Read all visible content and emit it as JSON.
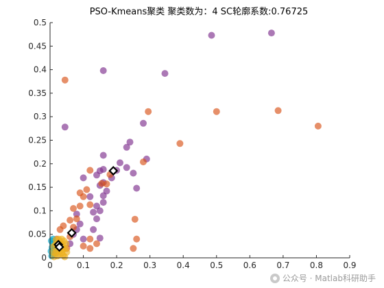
{
  "chart_data": {
    "type": "scatter",
    "title": "PSO-Kmeans聚类  聚类数为：4  SC轮廓系数:0.76725",
    "xlim": [
      0,
      0.9
    ],
    "ylim": [
      0,
      0.5
    ],
    "xticks": [
      "0",
      "0.1",
      "0.2",
      "0.3",
      "0.4",
      "0.5",
      "0.6",
      "0.7",
      "0.8",
      "0.9"
    ],
    "yticks": [
      "0",
      "0.05",
      "0.1",
      "0.15",
      "0.2",
      "0.25",
      "0.3",
      "0.35",
      "0.4",
      "0.45",
      "0.5"
    ],
    "grid": false,
    "series": [
      {
        "color": "#7E2F8E",
        "points": [
          [
            0.665,
            0.478
          ],
          [
            0.485,
            0.473
          ],
          [
            0.16,
            0.398
          ],
          [
            0.345,
            0.392
          ],
          [
            0.045,
            0.278
          ],
          [
            0.28,
            0.286
          ],
          [
            0.24,
            0.246
          ],
          [
            0.23,
            0.235
          ],
          [
            0.29,
            0.21
          ],
          [
            0.16,
            0.218
          ],
          [
            0.21,
            0.202
          ],
          [
            0.15,
            0.185
          ],
          [
            0.16,
            0.188
          ],
          [
            0.2,
            0.186
          ],
          [
            0.23,
            0.192
          ],
          [
            0.185,
            0.17
          ],
          [
            0.1,
            0.17
          ],
          [
            0.14,
            0.176
          ],
          [
            0.16,
            0.16
          ],
          [
            0.25,
            0.18
          ],
          [
            0.15,
            0.154
          ],
          [
            0.17,
            0.142
          ],
          [
            0.16,
            0.132
          ],
          [
            0.26,
            0.148
          ],
          [
            0.12,
            0.13
          ],
          [
            0.14,
            0.11
          ],
          [
            0.16,
            0.118
          ],
          [
            0.13,
            0.097
          ],
          [
            0.15,
            0.1
          ],
          [
            0.14,
            0.083
          ],
          [
            0.08,
            0.093
          ],
          [
            0.09,
            0.072
          ],
          [
            0.08,
            0.06
          ],
          [
            0.15,
            0.042
          ],
          [
            0.13,
            0.06
          ],
          [
            0.1,
            0.04
          ],
          [
            0.07,
            0.05
          ],
          [
            0.06,
            0.03
          ]
        ]
      },
      {
        "color": "#D95319",
        "points": [
          [
            0.805,
            0.28
          ],
          [
            0.685,
            0.313
          ],
          [
            0.5,
            0.311
          ],
          [
            0.295,
            0.311
          ],
          [
            0.045,
            0.378
          ],
          [
            0.39,
            0.243
          ],
          [
            0.28,
            0.204
          ],
          [
            0.18,
            0.177
          ],
          [
            0.12,
            0.186
          ],
          [
            0.155,
            0.158
          ],
          [
            0.17,
            0.157
          ],
          [
            0.11,
            0.145
          ],
          [
            0.09,
            0.138
          ],
          [
            0.1,
            0.13
          ],
          [
            0.12,
            0.113
          ],
          [
            0.09,
            0.11
          ],
          [
            0.07,
            0.105
          ],
          [
            0.08,
            0.083
          ],
          [
            0.06,
            0.08
          ],
          [
            0.07,
            0.065
          ],
          [
            0.04,
            0.068
          ],
          [
            0.03,
            0.06
          ],
          [
            0.255,
            0.082
          ],
          [
            0.26,
            0.04
          ],
          [
            0.25,
            0.02
          ],
          [
            0.12,
            0.04
          ],
          [
            0.14,
            0.03
          ],
          [
            0.1,
            0.025
          ],
          [
            0.12,
            0.02
          ],
          [
            0.06,
            0.045
          ],
          [
            0.05,
            0.02
          ],
          [
            0.02,
            0.04
          ],
          [
            0.03,
            0.03
          ]
        ]
      },
      {
        "color": "#00A4C8",
        "points": [
          [
            0.004,
            0.036
          ],
          [
            0.008,
            0.03
          ],
          [
            0.006,
            0.022
          ],
          [
            0.003,
            0.014
          ],
          [
            0.01,
            0.008
          ],
          [
            0.012,
            0.018
          ],
          [
            0.005,
            0.004
          ],
          [
            0.014,
            0.026
          ],
          [
            0.018,
            0.01
          ],
          [
            0.009,
            0.04
          ]
        ]
      },
      {
        "color": "#EDB120",
        "points": [
          [
            0.02,
            0.03
          ],
          [
            0.025,
            0.022
          ],
          [
            0.03,
            0.015
          ],
          [
            0.035,
            0.01
          ],
          [
            0.04,
            0.005
          ],
          [
            0.045,
            0.02
          ],
          [
            0.05,
            0.012
          ],
          [
            0.015,
            0.01
          ],
          [
            0.022,
            0.004
          ],
          [
            0.03,
            0.035
          ],
          [
            0.038,
            0.028
          ],
          [
            0.042,
            0.036
          ],
          [
            0.01,
            0.024
          ],
          [
            0.028,
            0.008
          ],
          [
            0.048,
            0.03
          ],
          [
            0.018,
            0.038
          ],
          [
            0.035,
            0.04
          ],
          [
            0.012,
            0.002
          ],
          [
            0.026,
            0.04
          ],
          [
            0.044,
            0.002
          ],
          [
            0.02,
            0.015
          ],
          [
            0.032,
            0.024
          ],
          [
            0.016,
            0.028
          ],
          [
            0.04,
            0.018
          ],
          [
            0.008,
            0.012
          ]
        ]
      }
    ],
    "centroids": [
      [
        0.19,
        0.185
      ],
      [
        0.065,
        0.053
      ],
      [
        0.025,
        0.028
      ],
      [
        0.028,
        0.023
      ]
    ]
  },
  "watermark": {
    "text": "公众号 · Matlab科研助手",
    "icon": "wechat-icon"
  }
}
